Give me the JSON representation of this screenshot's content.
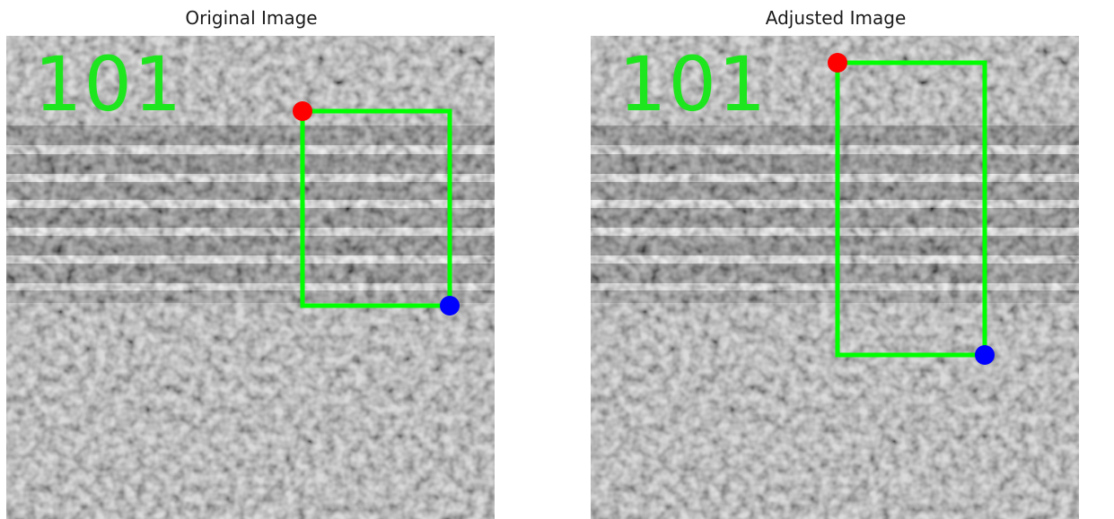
{
  "panels": [
    {
      "title": "Original Image",
      "frame_number": "101",
      "box_color": "#00ff00",
      "top_left_marker_color": "#ff0000",
      "bottom_right_marker_color": "#0000ff"
    },
    {
      "title": "Adjusted Image",
      "frame_number": "101",
      "box_color": "#00ff00",
      "top_left_marker_color": "#ff0000",
      "bottom_right_marker_color": "#0000ff"
    }
  ]
}
